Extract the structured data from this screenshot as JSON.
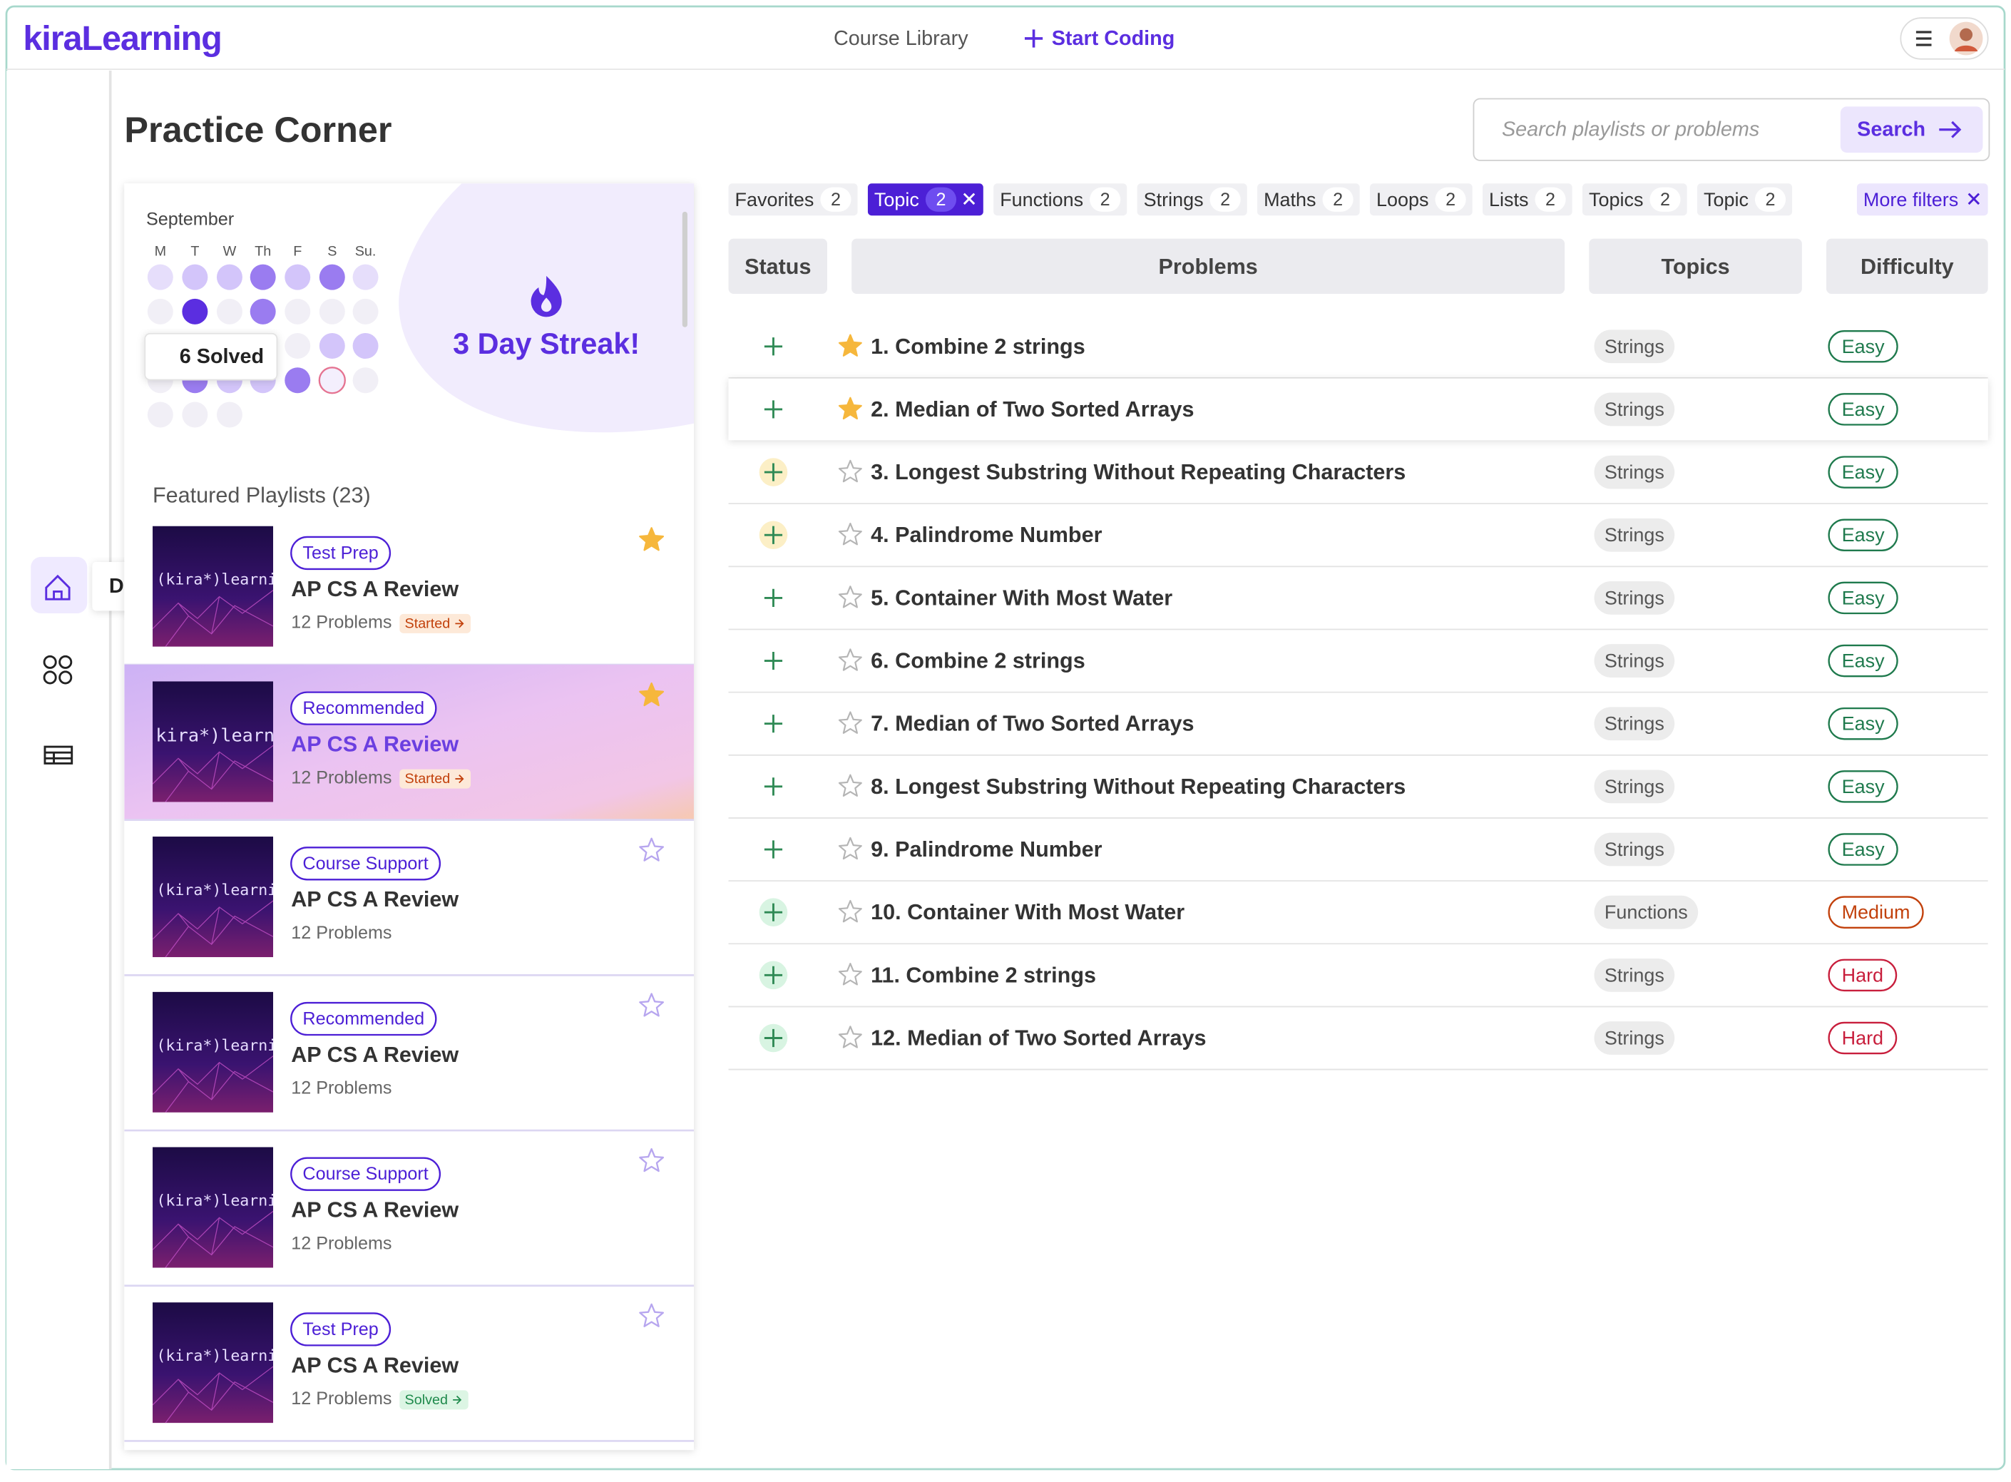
{
  "header": {
    "logo": "kiraLearning",
    "nav": [
      "Course Library",
      "Start Coding"
    ]
  },
  "sidebar": {
    "tooltip": "D"
  },
  "page": {
    "title": "Practice Corner",
    "search_placeholder": "Search playlists or problems",
    "search_button": "Search"
  },
  "calendar": {
    "month": "September",
    "weekdays": [
      "M",
      "T",
      "W",
      "Th",
      "F",
      "S",
      "Su."
    ],
    "weeks": [
      [
        1,
        2,
        2,
        3,
        2,
        3,
        1
      ],
      [
        0,
        4,
        0,
        3,
        0,
        0,
        0
      ],
      [
        0,
        0,
        0,
        0,
        0,
        2,
        2
      ],
      [
        0,
        3,
        2,
        2,
        3,
        "today",
        0
      ],
      [
        0,
        0,
        0
      ]
    ],
    "tooltip": "6 Solved",
    "streak": "3 Day Streak!"
  },
  "playlists": {
    "title": "Featured Playlists (23)",
    "thumbnail_text": "(kira*)learning",
    "items": [
      {
        "tag": "Test Prep",
        "title": "AP CS A Review",
        "meta": "12 Problems",
        "status": "Started",
        "starred": true,
        "highlighted": false
      },
      {
        "tag": "Recommended",
        "title": "AP CS A Review",
        "meta": "12 Problems",
        "status": "Started",
        "starred": true,
        "highlighted": true
      },
      {
        "tag": "Course Support",
        "title": "AP CS A Review",
        "meta": "12 Problems",
        "status": null,
        "starred": false,
        "highlighted": false
      },
      {
        "tag": "Recommended",
        "title": "AP CS A Review",
        "meta": "12 Problems",
        "status": null,
        "starred": false,
        "highlighted": false
      },
      {
        "tag": "Course Support",
        "title": "AP CS A Review",
        "meta": "12 Problems",
        "status": null,
        "starred": false,
        "highlighted": false
      },
      {
        "tag": "Test Prep",
        "title": "AP CS A Review",
        "meta": "12 Problems",
        "status": "Solved",
        "starred": false,
        "highlighted": false
      }
    ]
  },
  "filters": {
    "items": [
      {
        "label": "Favorites",
        "count": 2,
        "active": false
      },
      {
        "label": "Topic",
        "count": 2,
        "active": true
      },
      {
        "label": "Functions",
        "count": 2,
        "active": false
      },
      {
        "label": "Strings",
        "count": 2,
        "active": false
      },
      {
        "label": "Maths",
        "count": 2,
        "active": false
      },
      {
        "label": "Loops",
        "count": 2,
        "active": false
      },
      {
        "label": "Lists",
        "count": 2,
        "active": false
      },
      {
        "label": "Topics",
        "count": 2,
        "active": false
      },
      {
        "label": "Topic",
        "count": 2,
        "active": false
      }
    ],
    "more": "More filters"
  },
  "table": {
    "headers": [
      "Status",
      "Problems",
      "Topics",
      "Difficulty"
    ],
    "rows": [
      {
        "status": "new",
        "starred": true,
        "hover": false,
        "title": "1. Combine 2 strings",
        "topic": "Strings",
        "difficulty": "Easy"
      },
      {
        "status": "new",
        "starred": true,
        "hover": true,
        "title": "2. Median of Two Sorted Arrays",
        "topic": "Strings",
        "difficulty": "Easy"
      },
      {
        "status": "attempted",
        "starred": false,
        "hover": false,
        "title": "3. Longest Substring Without Repeating Characters",
        "topic": "Strings",
        "difficulty": "Easy"
      },
      {
        "status": "attempted",
        "starred": false,
        "hover": false,
        "title": "4. Palindrome Number",
        "topic": "Strings",
        "difficulty": "Easy"
      },
      {
        "status": "new",
        "starred": false,
        "hover": false,
        "title": "5. Container With Most Water",
        "topic": "Strings",
        "difficulty": "Easy"
      },
      {
        "status": "new",
        "starred": false,
        "hover": false,
        "title": "6. Combine 2 strings",
        "topic": "Strings",
        "difficulty": "Easy"
      },
      {
        "status": "new",
        "starred": false,
        "hover": false,
        "title": "7. Median of Two Sorted Arrays",
        "topic": "Strings",
        "difficulty": "Easy"
      },
      {
        "status": "new",
        "starred": false,
        "hover": false,
        "title": "8. Longest Substring Without Repeating Characters",
        "topic": "Strings",
        "difficulty": "Easy"
      },
      {
        "status": "new",
        "starred": false,
        "hover": false,
        "title": "9. Palindrome Number",
        "topic": "Strings",
        "difficulty": "Easy"
      },
      {
        "status": "solved",
        "starred": false,
        "hover": false,
        "title": "10. Container With Most Water",
        "topic": "Functions",
        "difficulty": "Medium"
      },
      {
        "status": "solved",
        "starred": false,
        "hover": false,
        "title": "11. Combine 2 strings",
        "topic": "Strings",
        "difficulty": "Hard"
      },
      {
        "status": "solved",
        "starred": false,
        "hover": false,
        "title": "12. Median of Two Sorted Arrays",
        "topic": "Strings",
        "difficulty": "Hard"
      }
    ]
  }
}
